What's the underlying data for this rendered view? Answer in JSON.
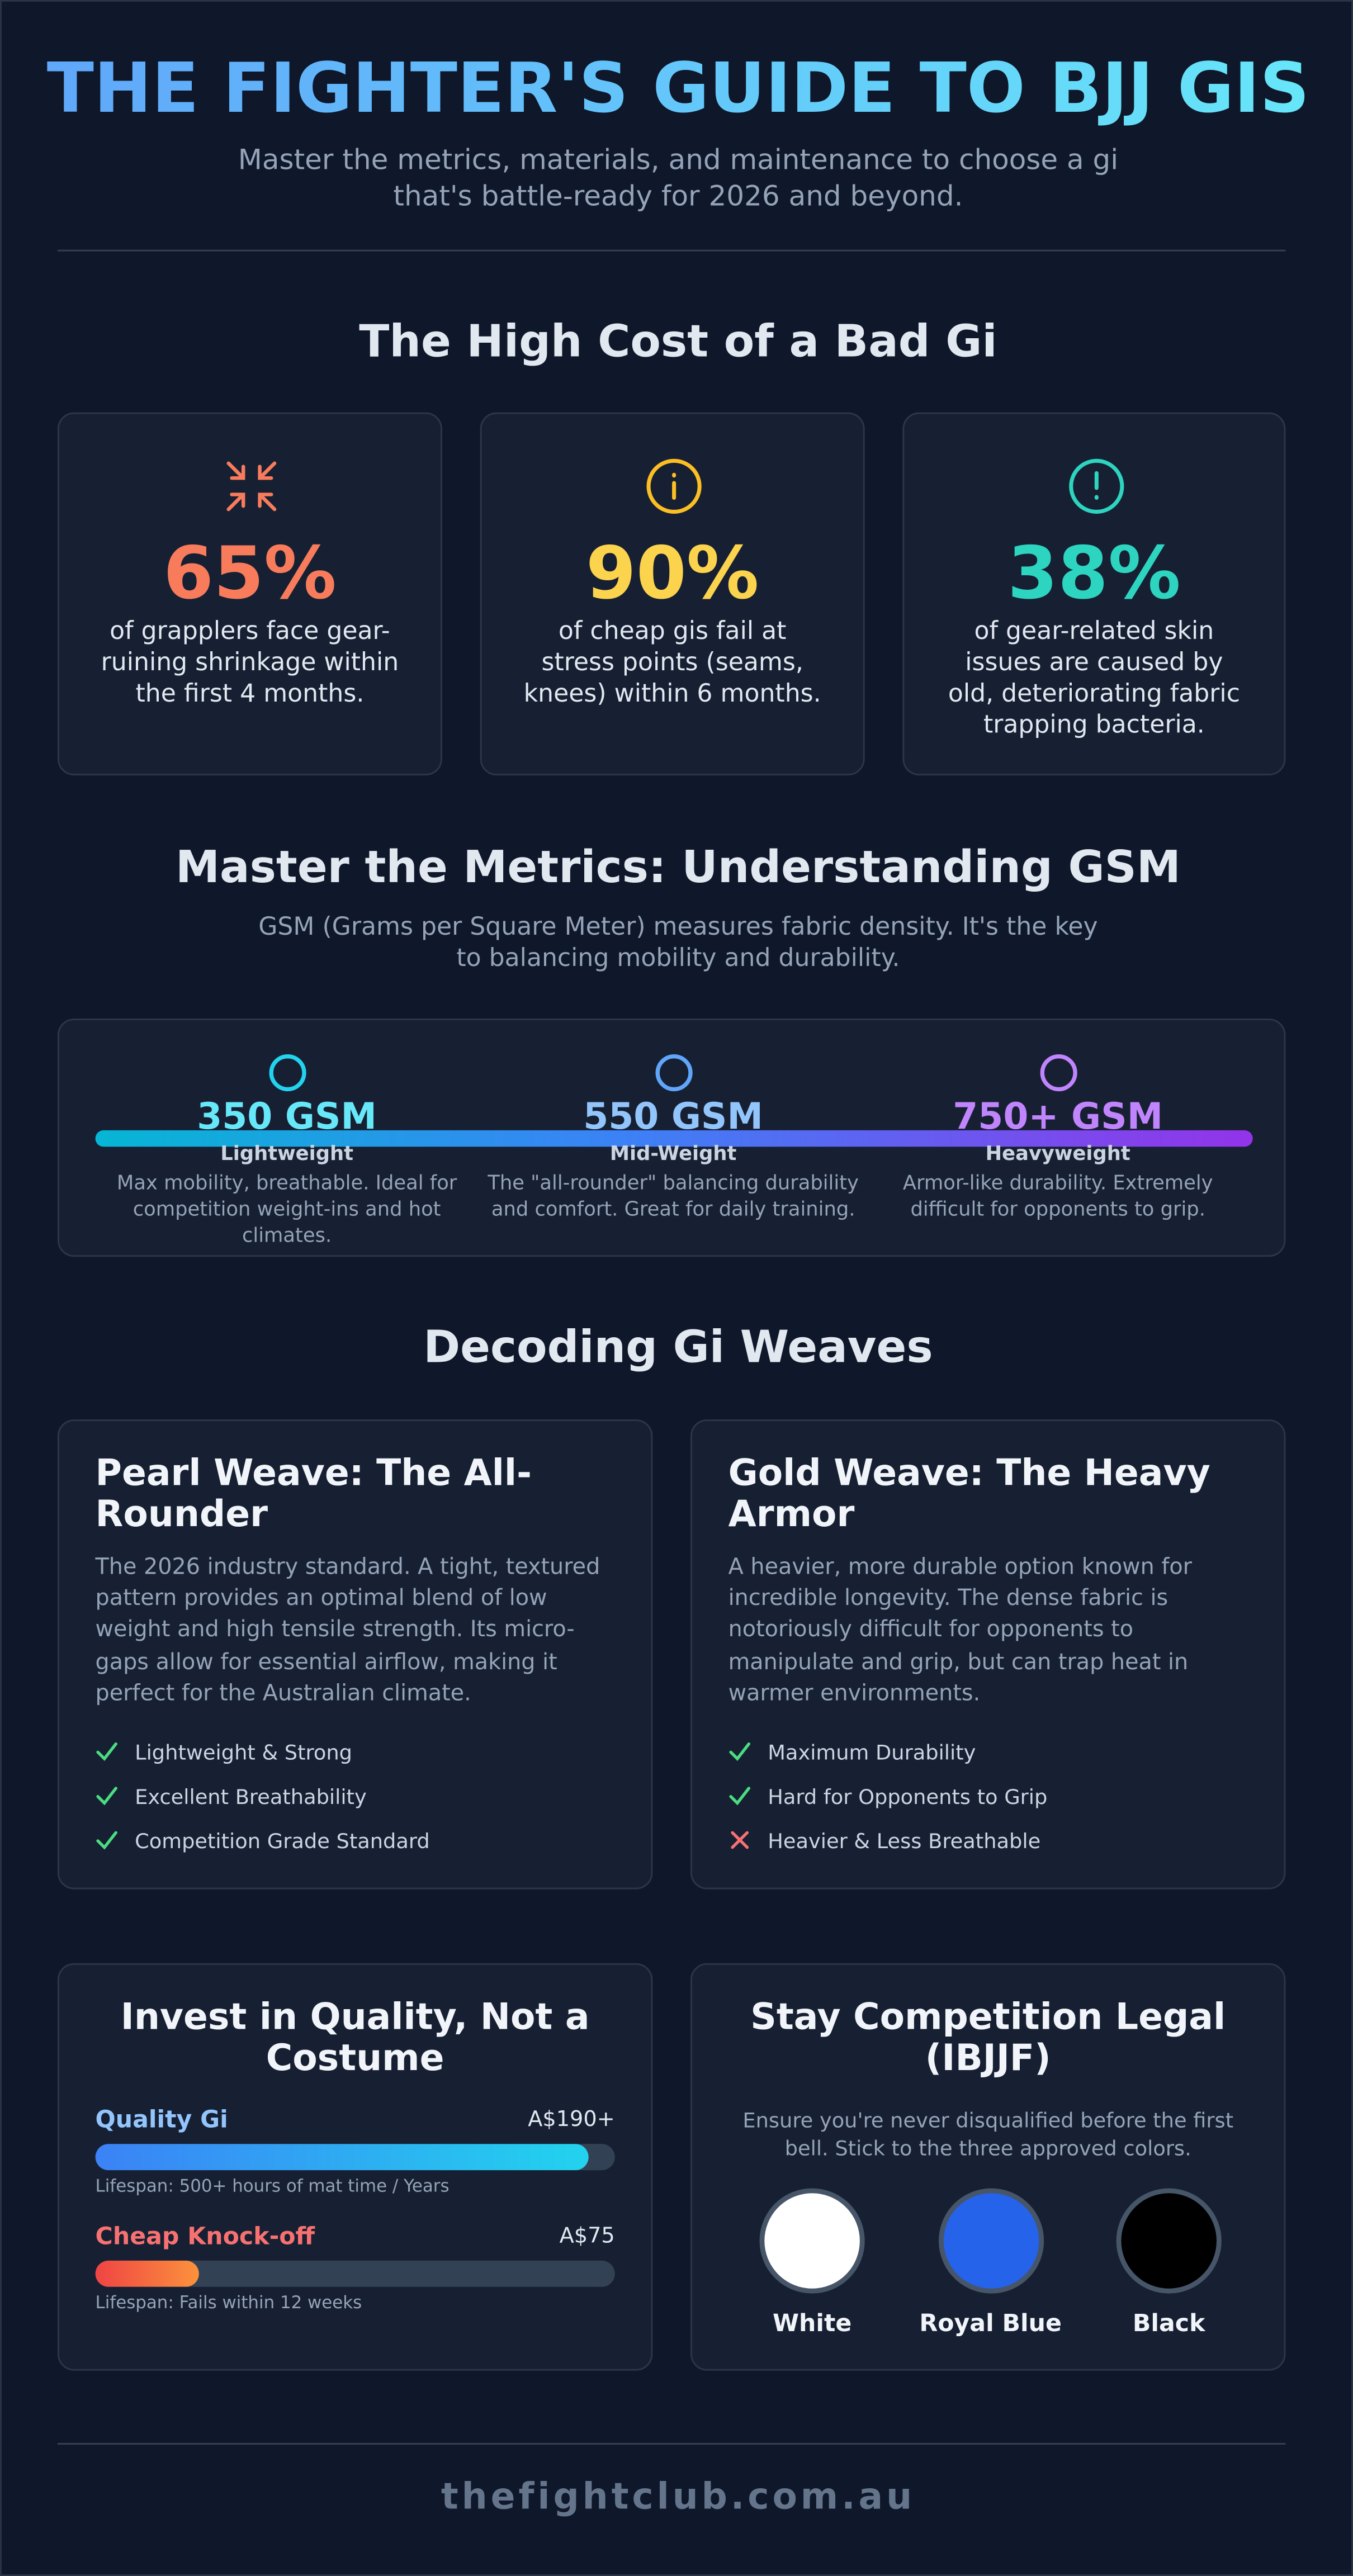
{
  "header": {
    "title": "THE FIGHTER'S GUIDE TO BJJ GIS",
    "subtitle": "Master the metrics, materials, and maintenance to choose a gi that's battle-ready for 2026 and beyond."
  },
  "cost": {
    "heading": "The High Cost of a Bad Gi",
    "stats": [
      {
        "value": "65%",
        "text": "of grapplers face gear-ruining shrinkage within the first 4 months."
      },
      {
        "value": "90%",
        "text": "of cheap gis fail at stress points (seams, knees) within 6 months."
      },
      {
        "value": "38%",
        "text": "of gear-related skin issues are caused by old, deteriorating fabric trapping bacteria."
      }
    ]
  },
  "gsm": {
    "heading": "Master the Metrics: Understanding GSM",
    "intro": "GSM (Grams per Square Meter) measures fabric density. It's the key to balancing mobility and durability.",
    "levels": [
      {
        "label": "350 GSM",
        "name": "Lightweight",
        "text": "Max mobility, breathable. Ideal for competition weight-ins and hot climates."
      },
      {
        "label": "550 GSM",
        "name": "Mid-Weight",
        "text": "The \"all-rounder\" balancing durability and comfort. Great for daily training."
      },
      {
        "label": "750+ GSM",
        "name": "Heavyweight",
        "text": "Armor-like durability. Extremely difficult for opponents to grip."
      }
    ]
  },
  "weaves": {
    "heading": "Decoding Gi Weaves",
    "cards": [
      {
        "title": "Pearl Weave: The All-Rounder",
        "text": "The 2026 industry standard. A tight, textured pattern provides an optimal blend of low weight and high tensile strength. Its micro-gaps allow for essential airflow, making it perfect for the Australian climate.",
        "features": [
          {
            "text": "Lightweight & Strong",
            "ok": true
          },
          {
            "text": "Excellent Breathability",
            "ok": true
          },
          {
            "text": "Competition Grade Standard",
            "ok": true
          }
        ]
      },
      {
        "title": "Gold Weave: The Heavy Armor",
        "text": "A heavier, more durable option known for incredible longevity. The dense fabric is notoriously difficult for opponents to manipulate and grip, but can trap heat in warmer environments.",
        "features": [
          {
            "text": "Maximum Durability",
            "ok": true
          },
          {
            "text": "Hard for Opponents to Grip",
            "ok": true
          },
          {
            "text": "Heavier & Less Breathable",
            "ok": false
          }
        ]
      }
    ]
  },
  "quality": {
    "heading": "Invest in Quality, Not a Costume",
    "items": [
      {
        "name": "Quality Gi",
        "price": "A$190+",
        "note": "Lifespan: 500+ hours of mat time / Years"
      },
      {
        "name": "Cheap Knock-off",
        "price": "A$75",
        "note": "Lifespan: Fails within 12 weeks"
      }
    ]
  },
  "legal": {
    "heading": "Stay Competition Legal (IBJJF)",
    "text": "Ensure you're never disqualified before the first bell. Stick to the three approved colors.",
    "colors": [
      {
        "name": "White",
        "color": "#ffffff"
      },
      {
        "name": "Royal Blue",
        "color": "#2563eb"
      },
      {
        "name": "Black",
        "color": "#000000"
      }
    ]
  },
  "footer": {
    "site": "thefightclub.com.au"
  }
}
